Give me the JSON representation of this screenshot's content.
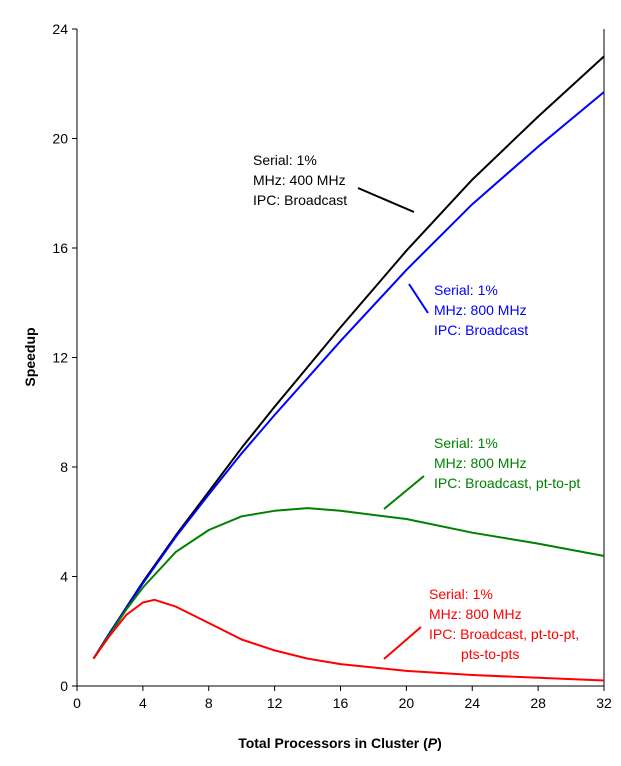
{
  "chart_data": {
    "type": "line",
    "title": "",
    "xlabel": "Total Processors in Cluster",
    "xlabel_var": "P",
    "ylabel": "Speedup",
    "xlim": [
      0,
      32
    ],
    "ylim": [
      0,
      24
    ],
    "xticks": [
      0,
      4,
      8,
      12,
      16,
      20,
      24,
      28,
      32
    ],
    "yticks": [
      0,
      4,
      8,
      12,
      16,
      20,
      24
    ],
    "grid": false,
    "legend": "none",
    "series": [
      {
        "name": "Serial 1%, 400 MHz, Broadcast",
        "color": "#000000",
        "x": [
          1,
          2,
          4,
          6,
          8,
          10,
          12,
          16,
          20,
          24,
          28,
          32
        ],
        "y": [
          1,
          1.95,
          3.8,
          5.5,
          7.1,
          8.7,
          10.2,
          13.1,
          15.9,
          18.5,
          20.8,
          23.0
        ]
      },
      {
        "name": "Serial 1%, 800 MHz, Broadcast",
        "color": "#0000ff",
        "x": [
          1,
          2,
          4,
          6,
          8,
          10,
          12,
          16,
          20,
          24,
          28,
          32
        ],
        "y": [
          1,
          1.95,
          3.75,
          5.45,
          7.0,
          8.5,
          9.9,
          12.6,
          15.2,
          17.6,
          19.7,
          21.7
        ]
      },
      {
        "name": "Serial 1%, 800 MHz, Broadcast, pt-to-pt",
        "color": "#008000",
        "x": [
          1,
          2,
          3,
          4,
          6,
          8,
          10,
          12,
          14,
          16,
          20,
          24,
          28,
          32
        ],
        "y": [
          1,
          1.9,
          2.8,
          3.6,
          4.9,
          5.7,
          6.2,
          6.4,
          6.5,
          6.4,
          6.1,
          5.6,
          5.2,
          4.75
        ]
      },
      {
        "name": "Serial 1%, 800 MHz, Broadcast, pt-to-pt, pts-to-pts",
        "color": "#ff0000",
        "x": [
          1,
          2,
          3,
          4,
          4.7,
          6,
          8,
          10,
          12,
          14,
          16,
          20,
          24,
          28,
          32
        ],
        "y": [
          1,
          1.85,
          2.6,
          3.05,
          3.15,
          2.9,
          2.3,
          1.7,
          1.3,
          1.0,
          0.8,
          0.55,
          0.4,
          0.3,
          0.2
        ]
      }
    ],
    "annotations": [
      {
        "lines": [
          "Serial: 1%",
          "MHz: 400 MHz",
          "IPC: Broadcast"
        ],
        "color": "#000000"
      },
      {
        "lines": [
          "Serial: 1%",
          "MHz: 800 MHz",
          "IPC: Broadcast"
        ],
        "color": "#0000ff"
      },
      {
        "lines": [
          "Serial: 1%",
          "MHz: 800 MHz",
          "IPC: Broadcast, pt-to-pt"
        ],
        "color": "#008000"
      },
      {
        "lines": [
          "Serial: 1%",
          "MHz: 800 MHz",
          "IPC: Broadcast, pt-to-pt,",
          "pts-to-pts"
        ],
        "color": "#ff0000"
      }
    ]
  }
}
